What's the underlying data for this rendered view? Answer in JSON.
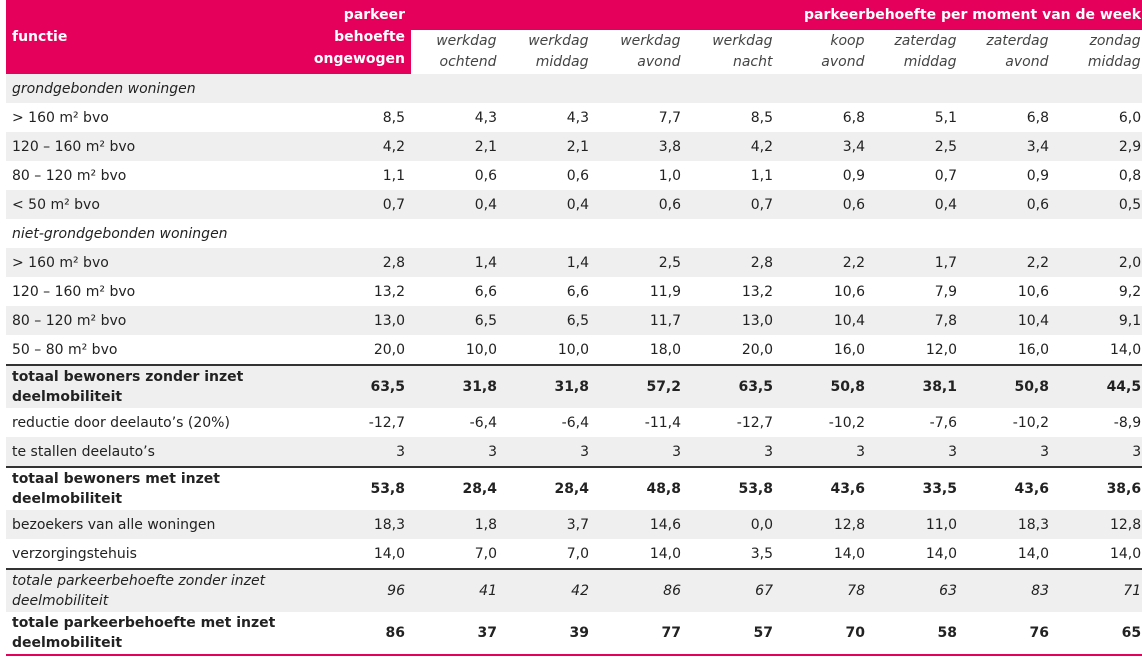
{
  "header": {
    "functie": "functie",
    "pb_line1": "parkeer",
    "pb_line2": "behoefte",
    "pb_line3": "ongewogen",
    "span_title": "parkeerbehoefte per moment van de week",
    "moments": [
      {
        "l1": "werkdag",
        "l2": "ochtend"
      },
      {
        "l1": "werkdag",
        "l2": "middag"
      },
      {
        "l1": "werkdag",
        "l2": "avond"
      },
      {
        "l1": "werkdag",
        "l2": "nacht"
      },
      {
        "l1": "koop",
        "l2": "avond"
      },
      {
        "l1": "zaterdag",
        "l2": "middag"
      },
      {
        "l1": "zaterdag",
        "l2": "avond"
      },
      {
        "l1": "zondag",
        "l2": "middag"
      }
    ]
  },
  "rows": [
    {
      "label": "grondgebonden woningen",
      "type": "cat",
      "values": []
    },
    {
      "label": "> 160 m² bvo",
      "type": "normal",
      "values": [
        "8,5",
        "4,3",
        "4,3",
        "7,7",
        "8,5",
        "6,8",
        "5,1",
        "6,8",
        "6,0"
      ]
    },
    {
      "label": "120 – 160 m² bvo",
      "type": "normal",
      "values": [
        "4,2",
        "2,1",
        "2,1",
        "3,8",
        "4,2",
        "3,4",
        "2,5",
        "3,4",
        "2,9"
      ]
    },
    {
      "label": "80 – 120 m² bvo",
      "type": "normal",
      "values": [
        "1,1",
        "0,6",
        "0,6",
        "1,0",
        "1,1",
        "0,9",
        "0,7",
        "0,9",
        "0,8"
      ]
    },
    {
      "label": "< 50 m² bvo",
      "type": "normal",
      "values": [
        "0,7",
        "0,4",
        "0,4",
        "0,6",
        "0,7",
        "0,6",
        "0,4",
        "0,6",
        "0,5"
      ]
    },
    {
      "label": "niet-grondgebonden woningen",
      "type": "cat",
      "values": []
    },
    {
      "label": "> 160 m² bvo",
      "type": "normal",
      "values": [
        "2,8",
        "1,4",
        "1,4",
        "2,5",
        "2,8",
        "2,2",
        "1,7",
        "2,2",
        "2,0"
      ]
    },
    {
      "label": "120 – 160 m² bvo",
      "type": "normal",
      "values": [
        "13,2",
        "6,6",
        "6,6",
        "11,9",
        "13,2",
        "10,6",
        "7,9",
        "10,6",
        "9,2"
      ]
    },
    {
      "label": "80 – 120 m² bvo",
      "type": "normal",
      "values": [
        "13,0",
        "6,5",
        "6,5",
        "11,7",
        "13,0",
        "10,4",
        "7,8",
        "10,4",
        "9,1"
      ]
    },
    {
      "label": "50 – 80 m² bvo",
      "type": "normal",
      "values": [
        "20,0",
        "10,0",
        "10,0",
        "18,0",
        "20,0",
        "16,0",
        "12,0",
        "16,0",
        "14,0"
      ]
    },
    {
      "label": "totaal bewoners zonder inzet deelmobiliteit",
      "type": "total",
      "values": [
        "63,5",
        "31,8",
        "31,8",
        "57,2",
        "63,5",
        "50,8",
        "38,1",
        "50,8",
        "44,5"
      ]
    },
    {
      "label": "reductie door deelauto’s (20%)",
      "type": "normal",
      "values": [
        "-12,7",
        "-6,4",
        "-6,4",
        "-11,4",
        "-12,7",
        "-10,2",
        "-7,6",
        "-10,2",
        "-8,9"
      ]
    },
    {
      "label": "te stallen deelauto’s",
      "type": "normal",
      "values": [
        "3",
        "3",
        "3",
        "3",
        "3",
        "3",
        "3",
        "3",
        "3"
      ]
    },
    {
      "label": "totaal bewoners met inzet deelmobiliteit",
      "type": "total",
      "values": [
        "53,8",
        "28,4",
        "28,4",
        "48,8",
        "53,8",
        "43,6",
        "33,5",
        "43,6",
        "38,6"
      ]
    },
    {
      "label": "bezoekers van alle woningen",
      "type": "normal",
      "values": [
        "18,3",
        "1,8",
        "3,7",
        "14,6",
        "0,0",
        "12,8",
        "11,0",
        "18,3",
        "12,8"
      ]
    },
    {
      "label": "verzorgingstehuis",
      "type": "normal",
      "values": [
        "14,0",
        "7,0",
        "7,0",
        "14,0",
        "3,5",
        "14,0",
        "14,0",
        "14,0",
        "14,0"
      ]
    },
    {
      "label": "totale parkeerbehoefte zonder inzet deelmobiliteit",
      "type": "italic-total",
      "values": [
        "96",
        "41",
        "42",
        "86",
        "67",
        "78",
        "63",
        "83",
        "71"
      ]
    },
    {
      "label": "totale parkeerbehoefte met inzet deelmobiliteit",
      "type": "final",
      "values": [
        "86",
        "37",
        "39",
        "77",
        "57",
        "70",
        "58",
        "76",
        "65"
      ]
    }
  ]
}
